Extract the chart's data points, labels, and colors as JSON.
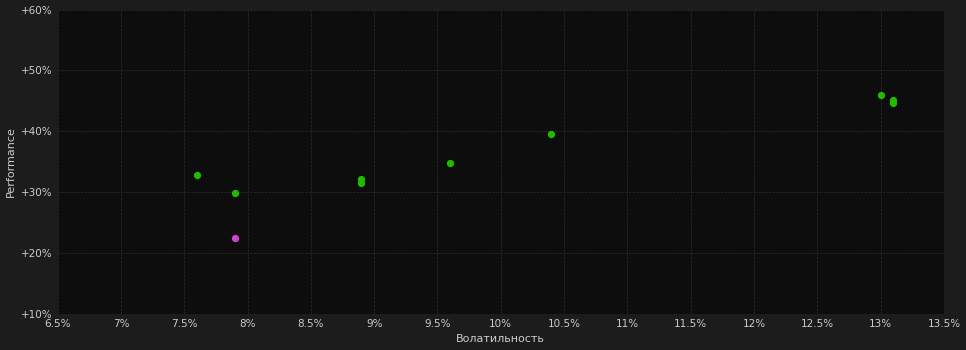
{
  "background_color": "#1c1c1c",
  "plot_bg_color": "#0d0d0d",
  "grid_color": "#2e2e2e",
  "text_color": "#cccccc",
  "xlabel": "Волатильность",
  "ylabel": "Performance",
  "xlim": [
    0.065,
    0.135
  ],
  "ylim": [
    0.1,
    0.6
  ],
  "xtick_values": [
    0.065,
    0.07,
    0.075,
    0.08,
    0.085,
    0.09,
    0.095,
    0.1,
    0.105,
    0.11,
    0.115,
    0.12,
    0.125,
    0.13,
    0.135
  ],
  "xtick_labels": [
    "6.5%",
    "7%",
    "7.5%",
    "8%",
    "8.5%",
    "9%",
    "9.5%",
    "10%",
    "10.5%",
    "11%",
    "11.5%",
    "12%",
    "12.5%",
    "13%",
    "13.5%"
  ],
  "ytick_values": [
    0.1,
    0.2,
    0.3,
    0.4,
    0.5,
    0.6
  ],
  "ytick_labels": [
    "+10%",
    "+20%",
    "+30%",
    "+40%",
    "+50%",
    "+60%"
  ],
  "green_points": [
    [
      0.076,
      0.328
    ],
    [
      0.079,
      0.298
    ],
    [
      0.089,
      0.322
    ],
    [
      0.089,
      0.315
    ],
    [
      0.096,
      0.348
    ],
    [
      0.104,
      0.395
    ],
    [
      0.13,
      0.46
    ],
    [
      0.131,
      0.452
    ],
    [
      0.131,
      0.447
    ]
  ],
  "magenta_points": [
    [
      0.079,
      0.225
    ]
  ],
  "point_size": 18,
  "dot_color_green": "#22bb00",
  "dot_color_magenta": "#cc44cc",
  "xlabel_fontsize": 8,
  "ylabel_fontsize": 8,
  "tick_fontsize": 7.5
}
